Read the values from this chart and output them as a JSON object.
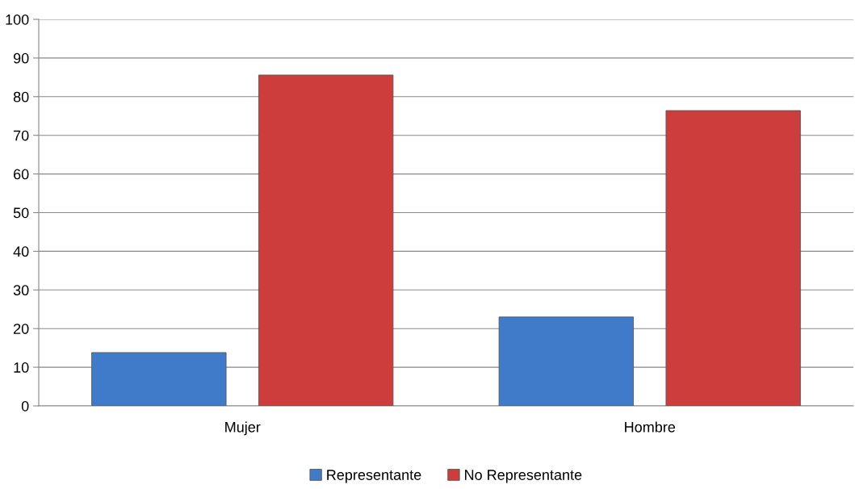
{
  "chart_data": {
    "type": "bar",
    "categories": [
      "Mujer",
      "Hombre"
    ],
    "series": [
      {
        "name": "Representante",
        "color": "#3f7bc9",
        "values": [
          13.8,
          23.0
        ]
      },
      {
        "name": "No Representante",
        "color": "#cc3d3b",
        "values": [
          85.6,
          76.4
        ]
      }
    ],
    "ylim": [
      0,
      100
    ],
    "yticks": [
      0,
      10,
      20,
      30,
      40,
      50,
      60,
      70,
      80,
      90,
      100
    ],
    "grid": "y",
    "legend": "bottom"
  }
}
